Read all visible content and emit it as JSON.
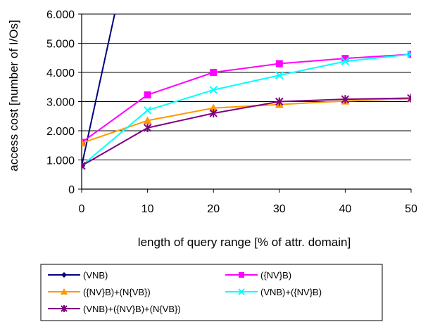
{
  "chart_data": {
    "type": "line",
    "xlabel": "length of query range [% of attr. domain]",
    "ylabel": "access cost [number of I/Os]",
    "x": [
      0,
      10,
      20,
      30,
      40,
      50
    ],
    "xlim": [
      0,
      50
    ],
    "ylim": [
      0,
      6000
    ],
    "x_ticks": [
      "0",
      "10",
      "20",
      "30",
      "40",
      "50"
    ],
    "y_ticks": [
      "0",
      "1.000",
      "2.000",
      "3.000",
      "4.000",
      "5.000",
      "6.000"
    ],
    "grid": "horizontal",
    "legend_position": "bottom",
    "series": [
      {
        "name": "(VNB)",
        "x": [
          0,
          5.3
        ],
        "values": [
          800,
          6300
        ],
        "color": "#000080",
        "marker": "diamond"
      },
      {
        "name": "({NV}B)",
        "values": [
          1600,
          3230,
          4000,
          4300,
          4480,
          4620
        ],
        "color": "#ff00ff",
        "marker": "square"
      },
      {
        "name": "({NV}B)+(N{VB})",
        "values": [
          1580,
          2350,
          2780,
          2900,
          3020,
          3100
        ],
        "color": "#ff9900",
        "marker": "triangle"
      },
      {
        "name": "(VNB)+({NV}B)",
        "values": [
          800,
          2700,
          3400,
          3900,
          4380,
          4620
        ],
        "color": "#00ffff",
        "marker": "x"
      },
      {
        "name": "(VNB)+({NV}B)+(N{VB})",
        "values": [
          800,
          2100,
          2600,
          3000,
          3080,
          3120
        ],
        "color": "#800080",
        "marker": "star"
      }
    ]
  }
}
